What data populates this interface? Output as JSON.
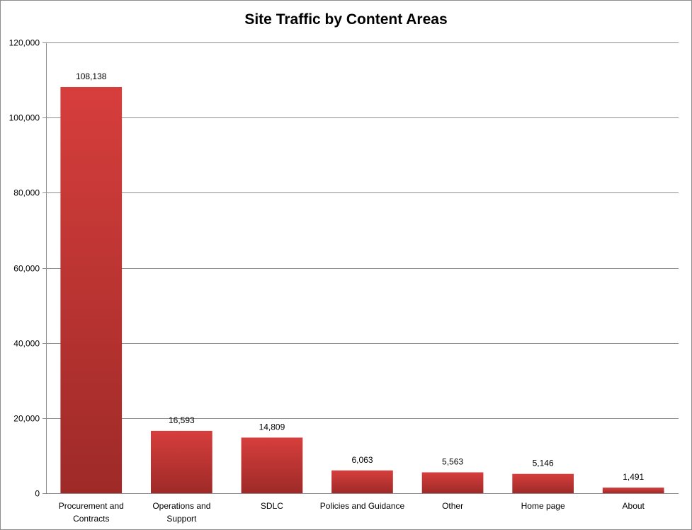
{
  "chart_data": {
    "type": "bar",
    "title": "Site Traffic by Content Areas",
    "categories": [
      [
        "Procurement and",
        "Contracts"
      ],
      [
        "Operations and",
        "Support"
      ],
      [
        "SDLC"
      ],
      [
        "Policies and Guidance"
      ],
      [
        "Other"
      ],
      [
        "Home page"
      ],
      [
        "About"
      ]
    ],
    "values": [
      108138,
      16593,
      14809,
      6063,
      5563,
      5146,
      1491
    ],
    "data_labels": [
      "108,138",
      "16,593",
      "14,809",
      "6,063",
      "5,563",
      "5,146",
      "1,491"
    ],
    "ylim": [
      0,
      120000
    ],
    "yticks": [
      0,
      20000,
      40000,
      60000,
      80000,
      100000,
      120000
    ],
    "ytick_labels": [
      "0",
      "20,000",
      "40,000",
      "60,000",
      "80,000",
      "100,000",
      "120,000"
    ],
    "grid": true,
    "bar_color_top": "#d63e3c",
    "bar_color_bottom": "#9e2a28"
  }
}
